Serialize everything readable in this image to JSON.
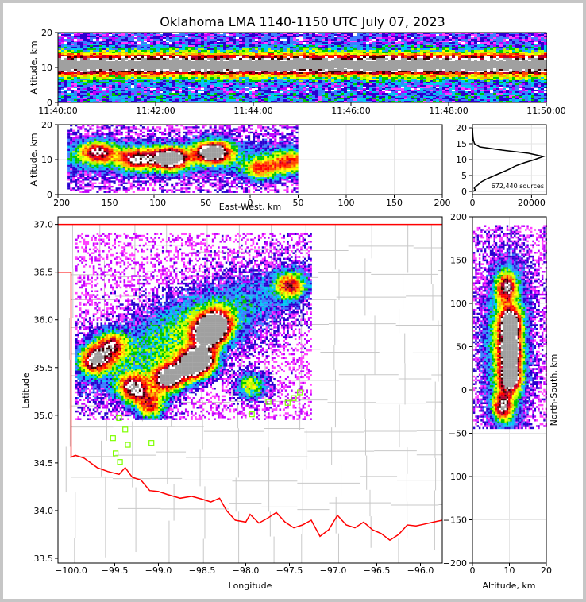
{
  "title": "Oklahoma LMA 1140-1150 UTC July 07, 2023",
  "chart_data": [
    {
      "type": "heatmap",
      "panel": "time-altitude",
      "ylabel": "Altitude, km",
      "xlim": [
        "11:40:00",
        "11:50:00"
      ],
      "ylim": [
        0,
        20
      ],
      "x_ticks": [
        "11:40:00",
        "11:42:00",
        "11:44:00",
        "11:46:00",
        "11:48:00",
        "11:50:00"
      ],
      "y_ticks": [
        "0",
        "10",
        "20"
      ],
      "density_core_altitude_km": [
        8,
        14
      ],
      "peak_altitude_km": 11
    },
    {
      "type": "heatmap",
      "panel": "east-west-altitude",
      "xlabel": "East-West, km",
      "ylabel": "Altitude, km",
      "xlim": [
        -200,
        200
      ],
      "ylim": [
        0,
        20
      ],
      "x_ticks": [
        "−200",
        "−150",
        "−100",
        "−50",
        "0",
        "50",
        "100",
        "150",
        "200"
      ],
      "y_ticks": [
        "0",
        "10",
        "20"
      ],
      "extent_km": [
        -190,
        50
      ],
      "cores": [
        {
          "x": -160,
          "z": 12,
          "level": 2
        },
        {
          "x": -120,
          "z": 10,
          "level": 2
        },
        {
          "x": -85,
          "z": 10,
          "level": 4
        },
        {
          "x": -40,
          "z": 12,
          "level": 4
        },
        {
          "x": 10,
          "z": 7,
          "level": 1
        },
        {
          "x": 40,
          "z": 9,
          "level": 1
        }
      ]
    },
    {
      "type": "line",
      "panel": "altitude-histogram",
      "annotation": "672,440 sources",
      "xlim": [
        0,
        25000
      ],
      "ylim": [
        -1,
        21
      ],
      "x_ticks": [
        "0",
        "20000"
      ],
      "y_ticks": [
        "0",
        "5",
        "10",
        "15",
        "20"
      ],
      "series": [
        {
          "altitude_km": [
            0,
            0.5,
            1,
            1.5,
            2,
            3,
            4,
            5,
            6,
            7,
            8,
            9,
            10,
            11,
            12,
            13,
            14,
            15,
            16,
            17,
            18,
            19,
            20
          ],
          "count": [
            300,
            1000,
            600,
            1000,
            1800,
            3000,
            5000,
            7500,
            10000,
            12500,
            14500,
            17500,
            21000,
            24000,
            19000,
            10000,
            2500,
            700,
            350,
            200,
            120,
            60,
            30
          ]
        }
      ]
    },
    {
      "type": "heatmap",
      "panel": "plan-view",
      "xlabel": "Longitude",
      "ylabel": "Latitude",
      "xlim": [
        -100.15,
        -95.75
      ],
      "ylim": [
        33.45,
        37.08
      ],
      "x_ticks": [
        "−100.0",
        "−99.5",
        "−99.0",
        "−98.5",
        "−98.0",
        "−97.5",
        "−97.0",
        "−96.5",
        "−96.0"
      ],
      "y_ticks": [
        "33.5",
        "34.0",
        "34.5",
        "35.0",
        "35.5",
        "36.0",
        "36.5",
        "37.0"
      ],
      "boundary_color": "#ff0000",
      "county_color": "#c8c8c8",
      "station_color": "#7fff00",
      "stations": [
        {
          "lon": -99.45,
          "lat": 34.97
        },
        {
          "lon": -99.38,
          "lat": 34.85
        },
        {
          "lon": -99.52,
          "lat": 34.76
        },
        {
          "lon": -99.35,
          "lat": 34.69
        },
        {
          "lon": -99.49,
          "lat": 34.6
        },
        {
          "lon": -99.44,
          "lat": 34.51
        },
        {
          "lon": -99.08,
          "lat": 34.71
        },
        {
          "lon": -97.93,
          "lat": 35.01
        },
        {
          "lon": -97.74,
          "lat": 35.14
        },
        {
          "lon": -97.52,
          "lat": 35.13
        },
        {
          "lon": -97.45,
          "lat": 35.18
        },
        {
          "lon": -97.38,
          "lat": 35.24
        }
      ],
      "cores": [
        {
          "lon": -99.74,
          "lat": 35.57,
          "level": 3
        },
        {
          "lon": -99.55,
          "lat": 35.72,
          "level": 2
        },
        {
          "lon": -99.3,
          "lat": 35.28,
          "level": 3
        },
        {
          "lon": -99.1,
          "lat": 35.1,
          "level": 2
        },
        {
          "lon": -98.9,
          "lat": 35.38,
          "level": 4
        },
        {
          "lon": -98.65,
          "lat": 35.5,
          "level": 3
        },
        {
          "lon": -98.52,
          "lat": 35.57,
          "level": 4
        },
        {
          "lon": -98.44,
          "lat": 35.85,
          "level": 4
        },
        {
          "lon": -98.35,
          "lat": 35.95,
          "level": 3
        },
        {
          "lon": -97.5,
          "lat": 36.35,
          "level": 2
        },
        {
          "lon": -97.95,
          "lat": 35.3,
          "level": 1
        }
      ]
    },
    {
      "type": "heatmap",
      "panel": "altitude-north-south",
      "xlabel": "Altitude, km",
      "ylabel": "North-South, km",
      "xlim": [
        0,
        20
      ],
      "ylim": [
        -200,
        200
      ],
      "x_ticks": [
        "0",
        "10",
        "20"
      ],
      "y_ticks": [
        "−200",
        "−150",
        "−100",
        "−50",
        "0",
        "50",
        "100",
        "150",
        "200"
      ],
      "extent_km": [
        -45,
        190
      ],
      "cores": [
        {
          "z": 9,
          "y": 118,
          "level": 2
        },
        {
          "z": 10,
          "y": 75,
          "level": 4
        },
        {
          "z": 10,
          "y": 45,
          "level": 4
        },
        {
          "z": 10,
          "y": 15,
          "level": 4
        },
        {
          "z": 8,
          "y": -20,
          "level": 2
        }
      ]
    }
  ]
}
